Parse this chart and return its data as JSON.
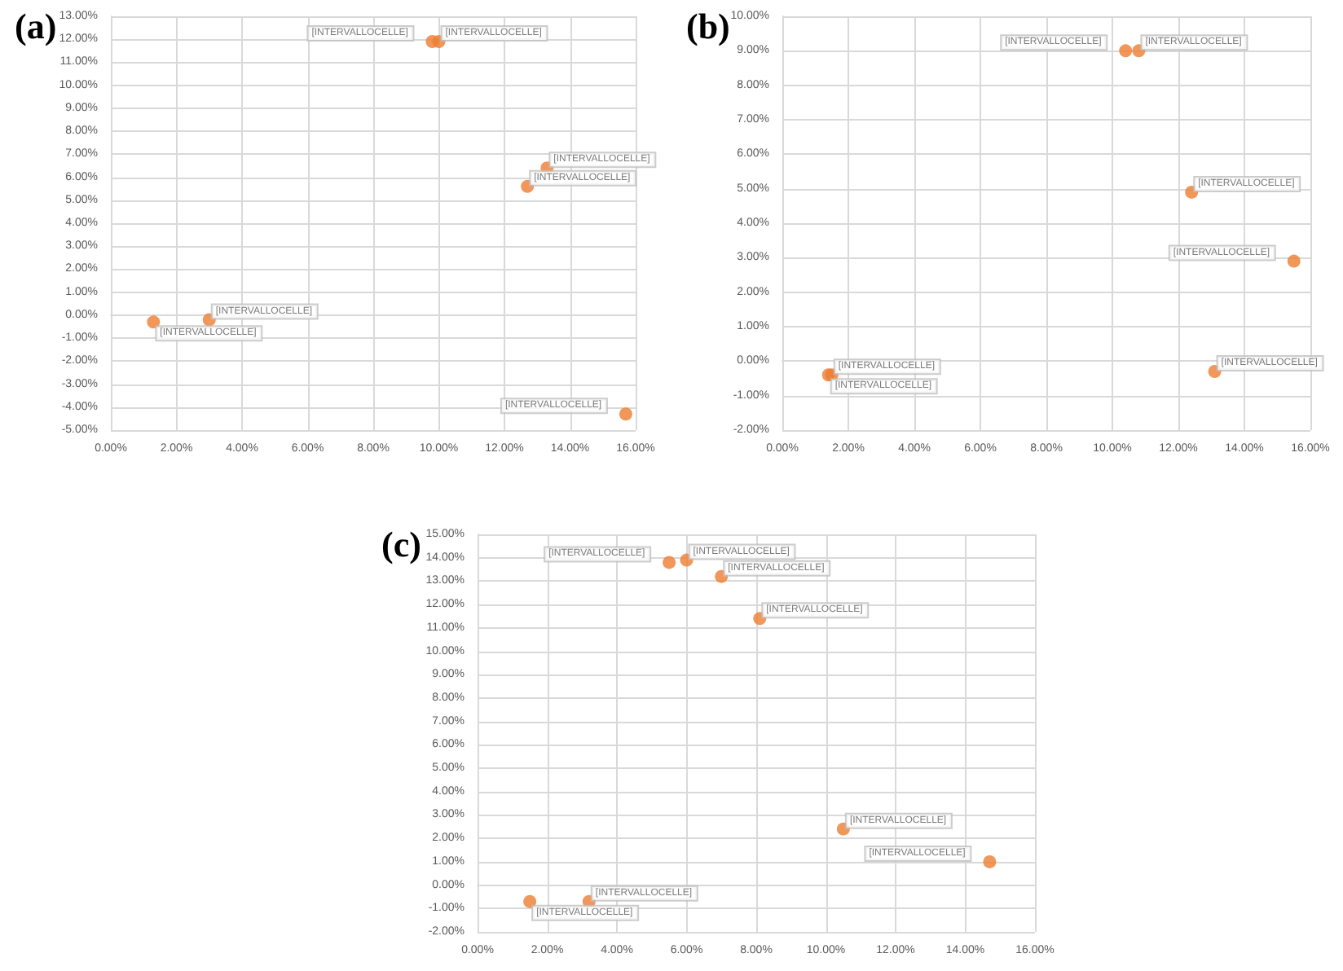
{
  "chart_data": [
    {
      "type": "scatter",
      "title": "(a)",
      "x": [
        1.3,
        3.0,
        9.8,
        10.0,
        12.7,
        13.3,
        15.7
      ],
      "values": [
        -0.3,
        -0.2,
        11.9,
        11.9,
        5.6,
        6.4,
        -4.3
      ],
      "color": "#ed7d31",
      "marker": "circle",
      "grid": true,
      "value_labels": [
        "[INTERVALLOCELLE]",
        "[INTERVALLOCELLE]",
        "[INTERVALLOCELLE]",
        "[INTERVALLOCELLE]",
        "[INTERVALLOCELLE]",
        "[INTERVALLOCELLE]",
        "[INTERVALLOCELLE]"
      ],
      "xlim": [
        0,
        16
      ],
      "xticks": [
        {
          "value": 0,
          "label": "0.00%"
        },
        {
          "value": 2,
          "label": "2.00%"
        },
        {
          "value": 4,
          "label": "4.00%"
        },
        {
          "value": 6,
          "label": "6.00%"
        },
        {
          "value": 8,
          "label": "8.00%"
        },
        {
          "value": 10,
          "label": "10.00%"
        },
        {
          "value": 12,
          "label": "12.00%"
        },
        {
          "value": 14,
          "label": "14.00%"
        },
        {
          "value": 16,
          "label": "16.00%"
        }
      ],
      "ylim": [
        -5,
        13
      ],
      "yticks": [
        {
          "value": -5,
          "label": "-5.00%"
        },
        {
          "value": -4,
          "label": "-4.00%"
        },
        {
          "value": -3,
          "label": "-3.00%"
        },
        {
          "value": -2,
          "label": "-2.00%"
        },
        {
          "value": -1,
          "label": "-1.00%"
        },
        {
          "value": 0,
          "label": "0.00%"
        },
        {
          "value": 1,
          "label": "1.00%"
        },
        {
          "value": 2,
          "label": "2.00%"
        },
        {
          "value": 3,
          "label": "3.00%"
        },
        {
          "value": 4,
          "label": "4.00%"
        },
        {
          "value": 5,
          "label": "5.00%"
        },
        {
          "value": 6,
          "label": "6.00%"
        },
        {
          "value": 7,
          "label": "7.00%"
        },
        {
          "value": 8,
          "label": "8.00%"
        },
        {
          "value": 9,
          "label": "9.00%"
        },
        {
          "value": 10,
          "label": "10.00%"
        },
        {
          "value": 11,
          "label": "11.00%"
        },
        {
          "value": 12,
          "label": "12.00%"
        },
        {
          "value": 13,
          "label": "13.00%"
        }
      ]
    },
    {
      "type": "scatter",
      "title": "(b)",
      "x": [
        1.4,
        1.5,
        10.4,
        10.8,
        12.4,
        13.1,
        15.5
      ],
      "values": [
        -0.4,
        -0.4,
        9.0,
        9.0,
        4.9,
        -0.3,
        2.9
      ],
      "color": "#ed7d31",
      "marker": "circle",
      "grid": true,
      "value_labels": [
        "[INTERVALLOCELLE]",
        "[INTERVALLOCELLE]",
        "[INTERVALLOCELLE]",
        "[INTERVALLOCELLE]",
        "[INTERVALLOCELLE]",
        "[INTERVALLOCELLE]",
        "[INTERVALLOCELLE]"
      ],
      "xlim": [
        0,
        16
      ],
      "xticks": [
        {
          "value": 0,
          "label": "0.00%"
        },
        {
          "value": 2,
          "label": "2.00%"
        },
        {
          "value": 4,
          "label": "4.00%"
        },
        {
          "value": 6,
          "label": "6.00%"
        },
        {
          "value": 8,
          "label": "8.00%"
        },
        {
          "value": 10,
          "label": "10.00%"
        },
        {
          "value": 12,
          "label": "12.00%"
        },
        {
          "value": 14,
          "label": "14.00%"
        },
        {
          "value": 16,
          "label": "16.00%"
        }
      ],
      "ylim": [
        -2,
        10
      ],
      "yticks": [
        {
          "value": -2,
          "label": "-2.00%"
        },
        {
          "value": -1,
          "label": "-1.00%"
        },
        {
          "value": 0,
          "label": "0.00%"
        },
        {
          "value": 1,
          "label": "1.00%"
        },
        {
          "value": 2,
          "label": "2.00%"
        },
        {
          "value": 3,
          "label": "3.00%"
        },
        {
          "value": 4,
          "label": "4.00%"
        },
        {
          "value": 5,
          "label": "5.00%"
        },
        {
          "value": 6,
          "label": "6.00%"
        },
        {
          "value": 7,
          "label": "7.00%"
        },
        {
          "value": 8,
          "label": "8.00%"
        },
        {
          "value": 9,
          "label": "9.00%"
        },
        {
          "value": 10,
          "label": "10.00%"
        }
      ]
    },
    {
      "type": "scatter",
      "title": "(c)",
      "x": [
        1.5,
        3.2,
        5.5,
        6.0,
        7.0,
        8.1,
        10.5,
        14.7
      ],
      "values": [
        -0.7,
        -0.7,
        13.8,
        13.9,
        13.2,
        11.4,
        2.4,
        1.0
      ],
      "color": "#ed7d31",
      "marker": "circle",
      "grid": true,
      "value_labels": [
        "[INTERVALLOCELLE]",
        "[INTERVALLOCELLE]",
        "[INTERVALLOCELLE]",
        "[INTERVALLOCELLE]",
        "[INTERVALLOCELLE]",
        "[INTERVALLOCELLE]",
        "[INTERVALLOCELLE]",
        "[INTERVALLOCELLE]"
      ],
      "xlim": [
        0,
        16
      ],
      "xticks": [
        {
          "value": 0,
          "label": "0.00%"
        },
        {
          "value": 2,
          "label": "2.00%"
        },
        {
          "value": 4,
          "label": "4.00%"
        },
        {
          "value": 6,
          "label": "6.00%"
        },
        {
          "value": 8,
          "label": "8.00%"
        },
        {
          "value": 10,
          "label": "10.00%"
        },
        {
          "value": 12,
          "label": "12.00%"
        },
        {
          "value": 14,
          "label": "14.00%"
        },
        {
          "value": 16,
          "label": "16.00%"
        }
      ],
      "ylim": [
        -2,
        15
      ],
      "yticks": [
        {
          "value": -2,
          "label": "-2.00%"
        },
        {
          "value": -1,
          "label": "-1.00%"
        },
        {
          "value": 0,
          "label": "0.00%"
        },
        {
          "value": 1,
          "label": "1.00%"
        },
        {
          "value": 2,
          "label": "2.00%"
        },
        {
          "value": 3,
          "label": "3.00%"
        },
        {
          "value": 4,
          "label": "4.00%"
        },
        {
          "value": 5,
          "label": "5.00%"
        },
        {
          "value": 6,
          "label": "6.00%"
        },
        {
          "value": 7,
          "label": "7.00%"
        },
        {
          "value": 8,
          "label": "8.00%"
        },
        {
          "value": 9,
          "label": "9.00%"
        },
        {
          "value": 10,
          "label": "10.00%"
        },
        {
          "value": 11,
          "label": "11.00%"
        },
        {
          "value": 12,
          "label": "12.00%"
        },
        {
          "value": 13,
          "label": "13.00%"
        },
        {
          "value": 14,
          "label": "14.00%"
        },
        {
          "value": 15,
          "label": "15.00%"
        }
      ]
    }
  ]
}
